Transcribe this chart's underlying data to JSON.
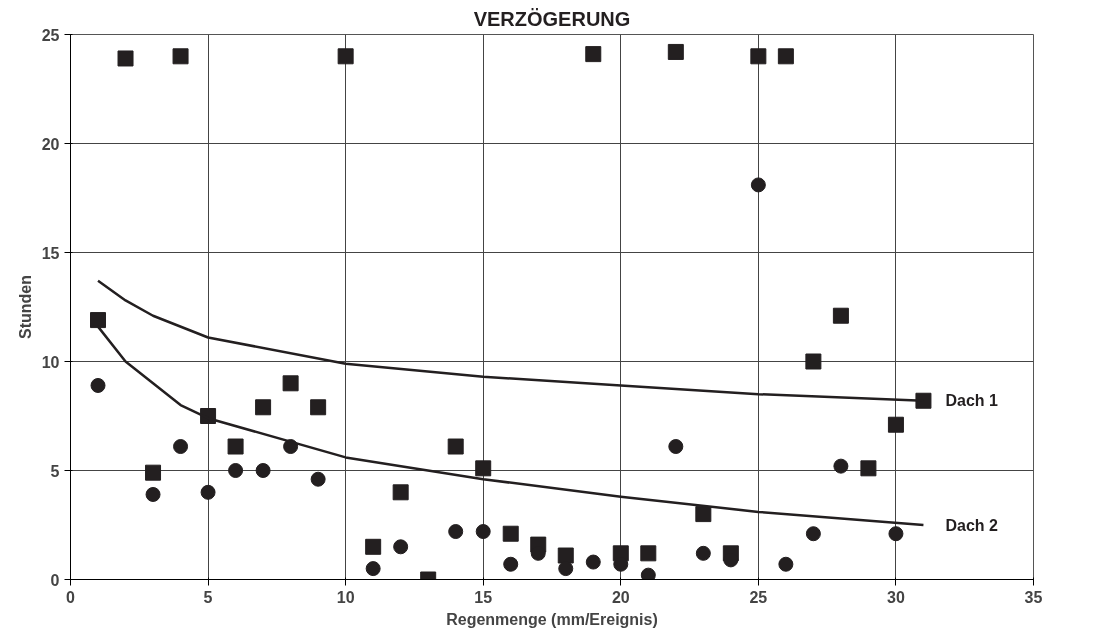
{
  "chart_data": {
    "type": "scatter",
    "title": "VERZÖGERUNG",
    "xlabel": "Regenmenge (mm/Ereignis)",
    "ylabel": "Stunden",
    "xlim": [
      0,
      35
    ],
    "ylim": [
      0,
      25
    ],
    "xticks": [
      0,
      5,
      10,
      15,
      20,
      25,
      30,
      35
    ],
    "yticks": [
      0,
      5,
      10,
      15,
      20,
      25
    ],
    "grid": true,
    "series": [
      {
        "marker": "square",
        "color": "#231f20",
        "x": [
          1,
          2,
          3,
          4,
          5,
          6,
          7,
          8,
          9,
          10,
          11,
          12,
          13,
          14,
          15,
          16,
          17,
          18,
          19,
          20,
          21,
          22,
          23,
          24,
          25,
          26,
          27,
          28,
          29,
          30,
          31
        ],
        "values": [
          11.9,
          23.9,
          4.9,
          24,
          7.5,
          6.1,
          7.9,
          9,
          7.9,
          24,
          1.5,
          4,
          0,
          6.1,
          5.1,
          2.1,
          1.6,
          1.1,
          24.1,
          1.2,
          1.2,
          24.2,
          3,
          1.2,
          24,
          24,
          10,
          12.1,
          5.1,
          7.1,
          8.2
        ]
      },
      {
        "marker": "circle",
        "color": "#231f20",
        "x": [
          1,
          3,
          4,
          5,
          6,
          7,
          8,
          9,
          11,
          12,
          14,
          15,
          16,
          17,
          18,
          19,
          20,
          21,
          22,
          23,
          24,
          25,
          26,
          27,
          28,
          30
        ],
        "values": [
          8.9,
          3.9,
          6.1,
          4,
          5,
          5,
          6.1,
          4.6,
          0.5,
          1.5,
          2.2,
          2.2,
          0.7,
          1.2,
          0.5,
          0.8,
          0.7,
          0.2,
          6.1,
          1.2,
          0.9,
          18.1,
          0.7,
          2.1,
          5.2,
          2.1
        ]
      },
      {
        "type": "line",
        "name": "Dach 1",
        "color": "#231f20",
        "x": [
          1,
          2,
          3,
          5,
          10,
          15,
          20,
          25,
          31
        ],
        "values": [
          13.7,
          12.8,
          12.1,
          11.1,
          9.9,
          9.3,
          8.9,
          8.5,
          8.2
        ]
      },
      {
        "type": "line",
        "name": "Dach 2",
        "color": "#231f20",
        "x": [
          1,
          2,
          3,
          4,
          5,
          10,
          15,
          20,
          25,
          31
        ],
        "values": [
          11.6,
          10,
          9,
          8,
          7.4,
          5.6,
          4.6,
          3.8,
          3.1,
          2.5
        ]
      }
    ]
  }
}
